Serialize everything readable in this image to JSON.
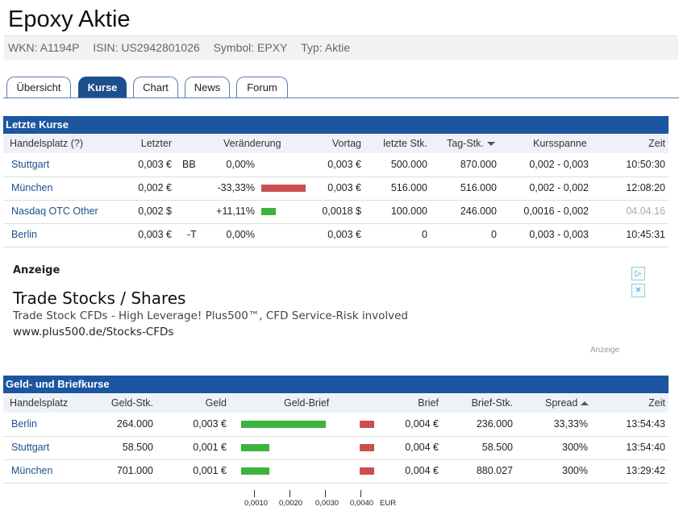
{
  "page": {
    "title": "Epoxy Aktie"
  },
  "meta": {
    "wkn": "WKN: A1194P",
    "isin": "ISIN: US2942801026",
    "symbol": "Symbol: EPXY",
    "typ": "Typ: Aktie"
  },
  "tabs": [
    {
      "label": "Übersicht",
      "active": false
    },
    {
      "label": "Kurse",
      "active": true
    },
    {
      "label": "Chart",
      "active": false
    },
    {
      "label": "News",
      "active": false
    },
    {
      "label": "Forum",
      "active": false
    }
  ],
  "letzte_kurse": {
    "title": "Letzte Kurse",
    "headers": {
      "handelsplatz": "Handelsplatz (?)",
      "letzter": "Letzter",
      "veraenderung": "Veränderung",
      "vortag": "Vortag",
      "letzte_stk": "letzte Stk.",
      "tag_stk": "Tag-Stk.",
      "kursspanne": "Kursspanne",
      "zeit": "Zeit"
    },
    "rows": [
      {
        "platz": "Stuttgart",
        "letzter": "0,003 €",
        "flag": "BB",
        "change": "0,00%",
        "change_value": 0.0,
        "vortag": "0,003 €",
        "letzte_stk": "500.000",
        "tag_stk": "870.000",
        "spanne": "0,002 - 0,003",
        "zeit": "10:50:30"
      },
      {
        "platz": "München",
        "letzter": "0,002 €",
        "flag": "",
        "change": "-33,33%",
        "change_value": -33.33,
        "vortag": "0,003 €",
        "letzte_stk": "516.000",
        "tag_stk": "516.000",
        "spanne": "0,002 - 0,002",
        "zeit": "12:08:20"
      },
      {
        "platz": "Nasdaq OTC Other",
        "letzter": "0,002 $",
        "flag": "",
        "change": "+11,11%",
        "change_value": 11.11,
        "vortag": "0,0018 $",
        "letzte_stk": "100.000",
        "tag_stk": "246.000",
        "spanne": "0,0016 - 0,002",
        "zeit": "04.04.16"
      },
      {
        "platz": "Berlin",
        "letzter": "0,003 €",
        "flag": "-T",
        "change": "0,00%",
        "change_value": 0.0,
        "vortag": "0,003 €",
        "letzte_stk": "0",
        "tag_stk": "0",
        "spanne": "0,003 - 0,003",
        "zeit": "10:45:31"
      }
    ]
  },
  "ad": {
    "label": "Anzeige",
    "headline": "Trade Stocks / Shares",
    "text": "Trade Stock CFDs - High Leverage! Plus500™, CFD Service-Risk involved",
    "url": "www.plus500.de/Stocks-CFDs",
    "small": "Anzeige",
    "icons": [
      "adchoices-icon",
      "close-icon"
    ]
  },
  "geld_brief": {
    "title": "Geld- und Briefkurse",
    "headers": {
      "handelsplatz": "Handelsplatz",
      "geld_stk": "Geld-Stk.",
      "geld": "Geld",
      "geld_brief": "Geld-Brief",
      "brief": "Brief",
      "brief_stk": "Brief-Stk.",
      "spread": "Spread",
      "zeit": "Zeit"
    },
    "rows": [
      {
        "platz": "Berlin",
        "geld_stk": "264.000",
        "geld": "0,003 €",
        "geld_value": 0.003,
        "brief": "0,004 €",
        "brief_value": 0.004,
        "brief_stk": "236.000",
        "spread": "33,33%",
        "zeit": "13:54:43"
      },
      {
        "platz": "Stuttgart",
        "geld_stk": "58.500",
        "geld": "0,001 €",
        "geld_value": 0.001,
        "brief": "0,004 €",
        "brief_value": 0.004,
        "brief_stk": "58.500",
        "spread": "300%",
        "zeit": "13:54:40"
      },
      {
        "platz": "München",
        "geld_stk": "701.000",
        "geld": "0,001 €",
        "geld_value": 0.001,
        "brief": "0,004 €",
        "brief_value": 0.004,
        "brief_stk": "880.027",
        "spread": "300%",
        "zeit": "13:29:42"
      }
    ],
    "axis_ticks": [
      "0,0010",
      "0,0020",
      "0,0030",
      "0,0040"
    ],
    "axis_unit": "EUR"
  },
  "colors": {
    "header_blue": "#1c56a0",
    "positive": "#3db33d",
    "negative": "#c9504f"
  }
}
